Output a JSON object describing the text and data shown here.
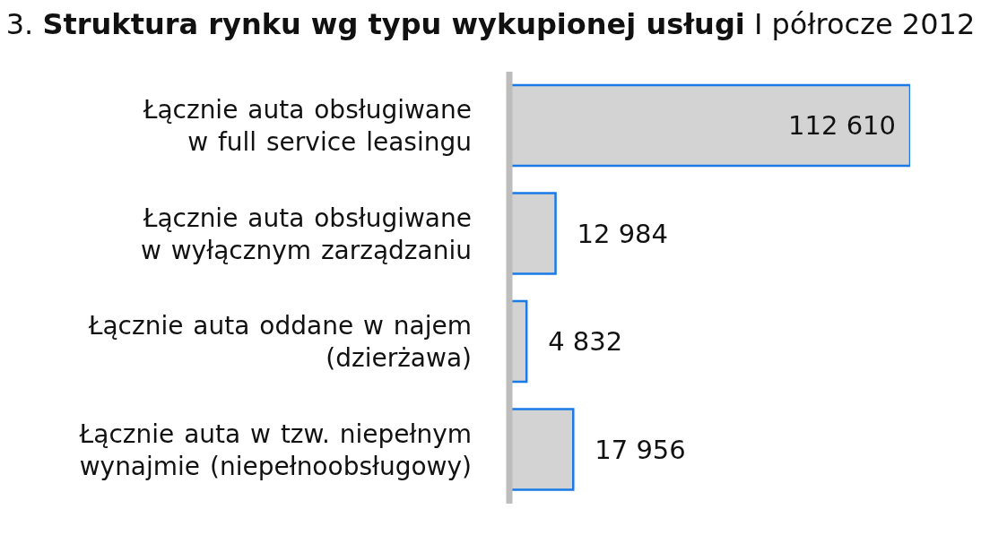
{
  "chart_data": {
    "type": "bar",
    "orientation": "horizontal",
    "title": "3. Struktura rynku wg typu wykupionej usługi",
    "subtitle": "I półrocze 2012",
    "categories": [
      "Łącznie auta obsługiwane\nw full service leasingu",
      "Łącznie auta obsługiwane\nw wyłącznym zarządzaniu",
      "Łącznie auta oddane w najem\n(dzierżawa)",
      "Łącznie auta w tzw. niepełnym\nwynajmie (niepełnoobsługowy)"
    ],
    "values": [
      112610,
      12984,
      4832,
      17956
    ],
    "color": "#d3d3d3",
    "value_labels": [
      "112 610",
      "12 984",
      "4 832",
      "17 956"
    ],
    "tick_labels": "y"
  }
}
